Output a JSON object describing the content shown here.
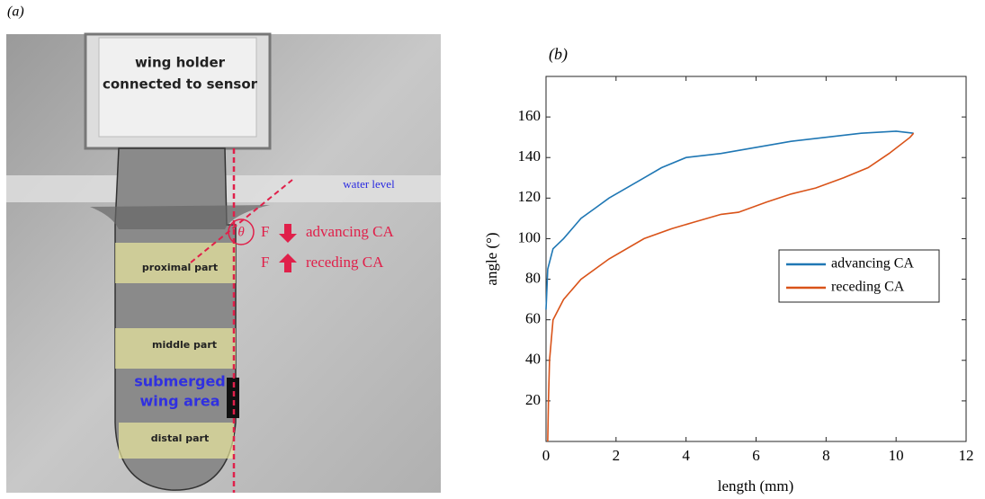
{
  "figure_a": {
    "panel_label": "(a)",
    "holder_label": [
      "wing holder",
      "connected to sensor"
    ],
    "water_label": "water level",
    "angle_symbol": "θ",
    "force_symbols": [
      "F",
      "F"
    ],
    "force_labels": [
      "advancing CA",
      "receding CA"
    ],
    "part_labels": [
      "proximal part",
      "middle part",
      "distal part"
    ],
    "submerged_label": [
      "submerged",
      "wing area"
    ]
  },
  "chart_data": {
    "type": "line",
    "panel_label": "(b)",
    "x_label": "length (mm)",
    "y_label": "angle (°)",
    "xlim": [
      0,
      12
    ],
    "xticks": [
      0,
      2,
      4,
      6,
      8,
      10,
      12
    ],
    "ylim": [
      0,
      180
    ],
    "yticks": [
      20,
      40,
      60,
      80,
      100,
      120,
      140,
      160
    ],
    "legend": "right",
    "series": [
      {
        "name": "advancing CA",
        "color": "#1f77b4",
        "x": [
          0,
          0.05,
          0.2,
          0.5,
          1,
          1.4,
          1.8,
          2.3,
          2.8,
          3.3,
          4,
          5,
          6,
          7,
          8,
          9,
          10,
          10.5
        ],
        "values": [
          65,
          85,
          95,
          100,
          110,
          115,
          120,
          125,
          130,
          135,
          140,
          142,
          145,
          148,
          150,
          152,
          153,
          152
        ]
      },
      {
        "name": "receding CA",
        "color": "#d95319",
        "x": [
          0.05,
          0.07,
          0.1,
          0.2,
          0.5,
          1,
          1.8,
          2.8,
          3.6,
          4.2,
          5,
          5.5,
          6.3,
          7,
          7.7,
          8.5,
          9.2,
          9.8,
          10.4,
          10.5
        ],
        "values": [
          0,
          20,
          40,
          60,
          70,
          80,
          90,
          100,
          105,
          108,
          112,
          113,
          118,
          122,
          125,
          130,
          135,
          142,
          150,
          152
        ]
      }
    ]
  }
}
